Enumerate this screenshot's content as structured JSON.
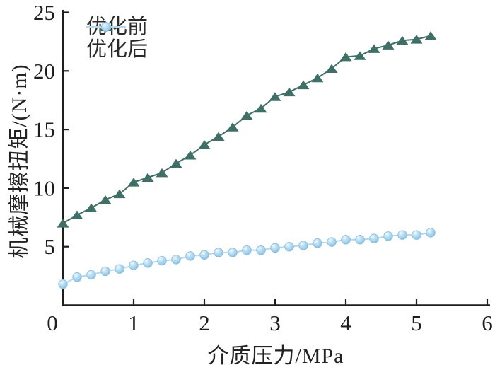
{
  "figure": {
    "background": "#ffffff"
  },
  "axes": {
    "x_title": "介质压力/MPa",
    "y_title": "机械摩擦扭矩/(N·m)",
    "x_tick_labels": [
      "0",
      "1",
      "2",
      "3",
      "4",
      "5",
      "6"
    ],
    "x_tick_values": [
      0,
      1,
      2,
      3,
      4,
      5,
      6
    ],
    "y_tick_labels": [
      "5",
      "10",
      "15",
      "20",
      "25"
    ],
    "y_tick_values": [
      5,
      10,
      15,
      20,
      25
    ],
    "axis_color": "#1e1e1e"
  },
  "legend": {
    "items": [
      {
        "label": "优化前",
        "marker": "triangle"
      },
      {
        "label": "优化后",
        "marker": "sphere"
      }
    ]
  },
  "colors": {
    "series_before": "#3f6f66",
    "series_after_line": "#b3d8ec",
    "series_after_fill": "#a5d2ee",
    "series_after_edge": "#85bcd9",
    "sphere_highlight": "#f2fafe",
    "sphere_mid": "#b9def2",
    "sphere_deep": "#9ccdea",
    "sphere_rim": "#7fb9da"
  },
  "chart_data": {
    "type": "line",
    "title": "",
    "xlabel": "介质压力/MPa",
    "ylabel": "机械摩擦扭矩/(N·m)",
    "xlim": [
      0,
      6
    ],
    "ylim": [
      0,
      25
    ],
    "grid": false,
    "legend_position": "top-left",
    "x": [
      0,
      0.2,
      0.4,
      0.6,
      0.8,
      1.0,
      1.2,
      1.4,
      1.6,
      1.8,
      2.0,
      2.2,
      2.4,
      2.6,
      2.8,
      3.0,
      3.2,
      3.4,
      3.6,
      3.8,
      4.0,
      4.2,
      4.4,
      4.6,
      4.8,
      5.0,
      5.2
    ],
    "series": [
      {
        "name": "优化前",
        "marker": "triangle",
        "color": "#3f6f66",
        "values": [
          7.0,
          7.7,
          8.3,
          9.0,
          9.5,
          10.5,
          10.9,
          11.3,
          12.1,
          12.8,
          13.7,
          14.4,
          15.2,
          16.2,
          16.8,
          17.8,
          18.2,
          18.8,
          19.4,
          20.2,
          21.2,
          21.3,
          21.9,
          22.2,
          22.6,
          22.7,
          23.0
        ]
      },
      {
        "name": "优化后",
        "marker": "sphere",
        "color": "#a5d2ee",
        "line_color": "#b3d8ec",
        "values": [
          1.8,
          2.4,
          2.6,
          2.9,
          3.1,
          3.4,
          3.6,
          3.8,
          3.9,
          4.2,
          4.3,
          4.5,
          4.5,
          4.7,
          4.7,
          4.9,
          5.0,
          5.1,
          5.3,
          5.4,
          5.6,
          5.6,
          5.7,
          5.9,
          6.0,
          6.0,
          6.2
        ]
      }
    ]
  }
}
